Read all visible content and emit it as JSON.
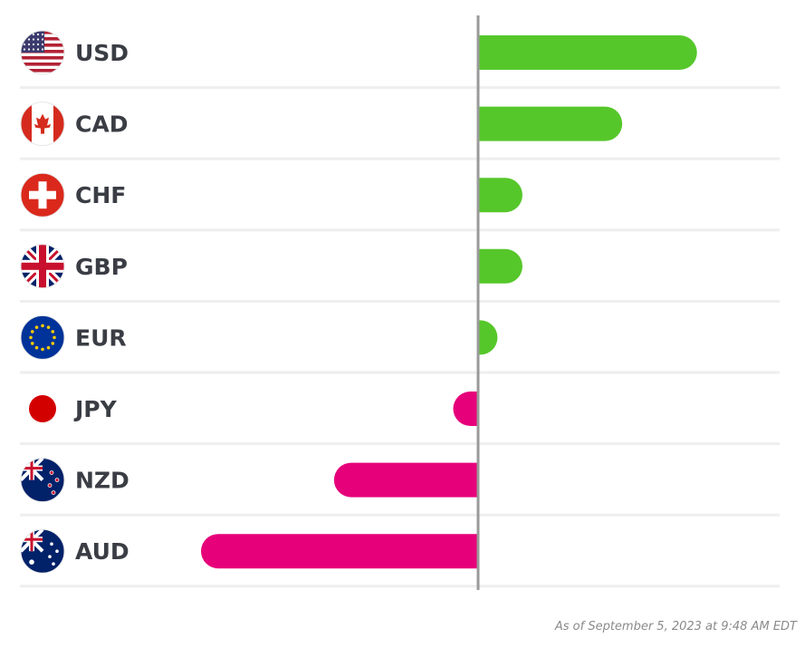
{
  "chart_data": {
    "type": "bar",
    "orientation": "horizontal",
    "categories": [
      "USD",
      "CAD",
      "CHF",
      "GBP",
      "EUR",
      "JPY",
      "NZD",
      "AUD"
    ],
    "values": [
      0.79,
      0.52,
      0.16,
      0.16,
      0.07,
      -0.09,
      -0.52,
      -1.0
    ],
    "flags": [
      "us-flag-icon",
      "canada-flag-icon",
      "switzerland-flag-icon",
      "uk-flag-icon",
      "eu-flag-icon",
      "japan-flag-icon",
      "new-zealand-flag-icon",
      "australia-flag-icon"
    ],
    "xlim": [
      -1.0,
      1.0
    ],
    "title": "",
    "xlabel": "",
    "ylabel": "",
    "legend": "none",
    "positive_color": "#56c72a",
    "negative_color": "#e6007a",
    "axis_color": "#9a9a9a",
    "divider_color": "#eeeeee"
  },
  "footnote": "As of September 5, 2023 at 9:48 AM EDT"
}
